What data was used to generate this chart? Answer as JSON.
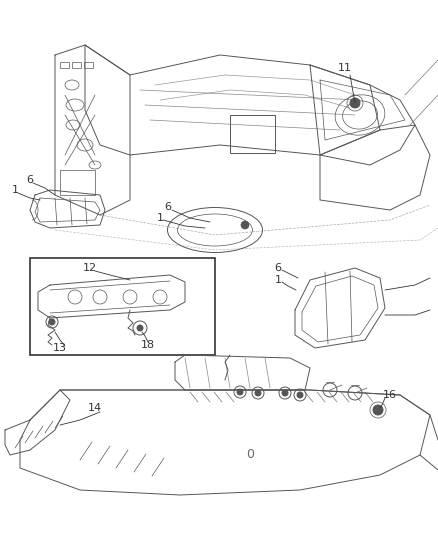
{
  "bg_color": "#ffffff",
  "line_color": "#555555",
  "label_color": "#333333",
  "fig_width": 4.38,
  "fig_height": 5.33,
  "dpi": 100
}
